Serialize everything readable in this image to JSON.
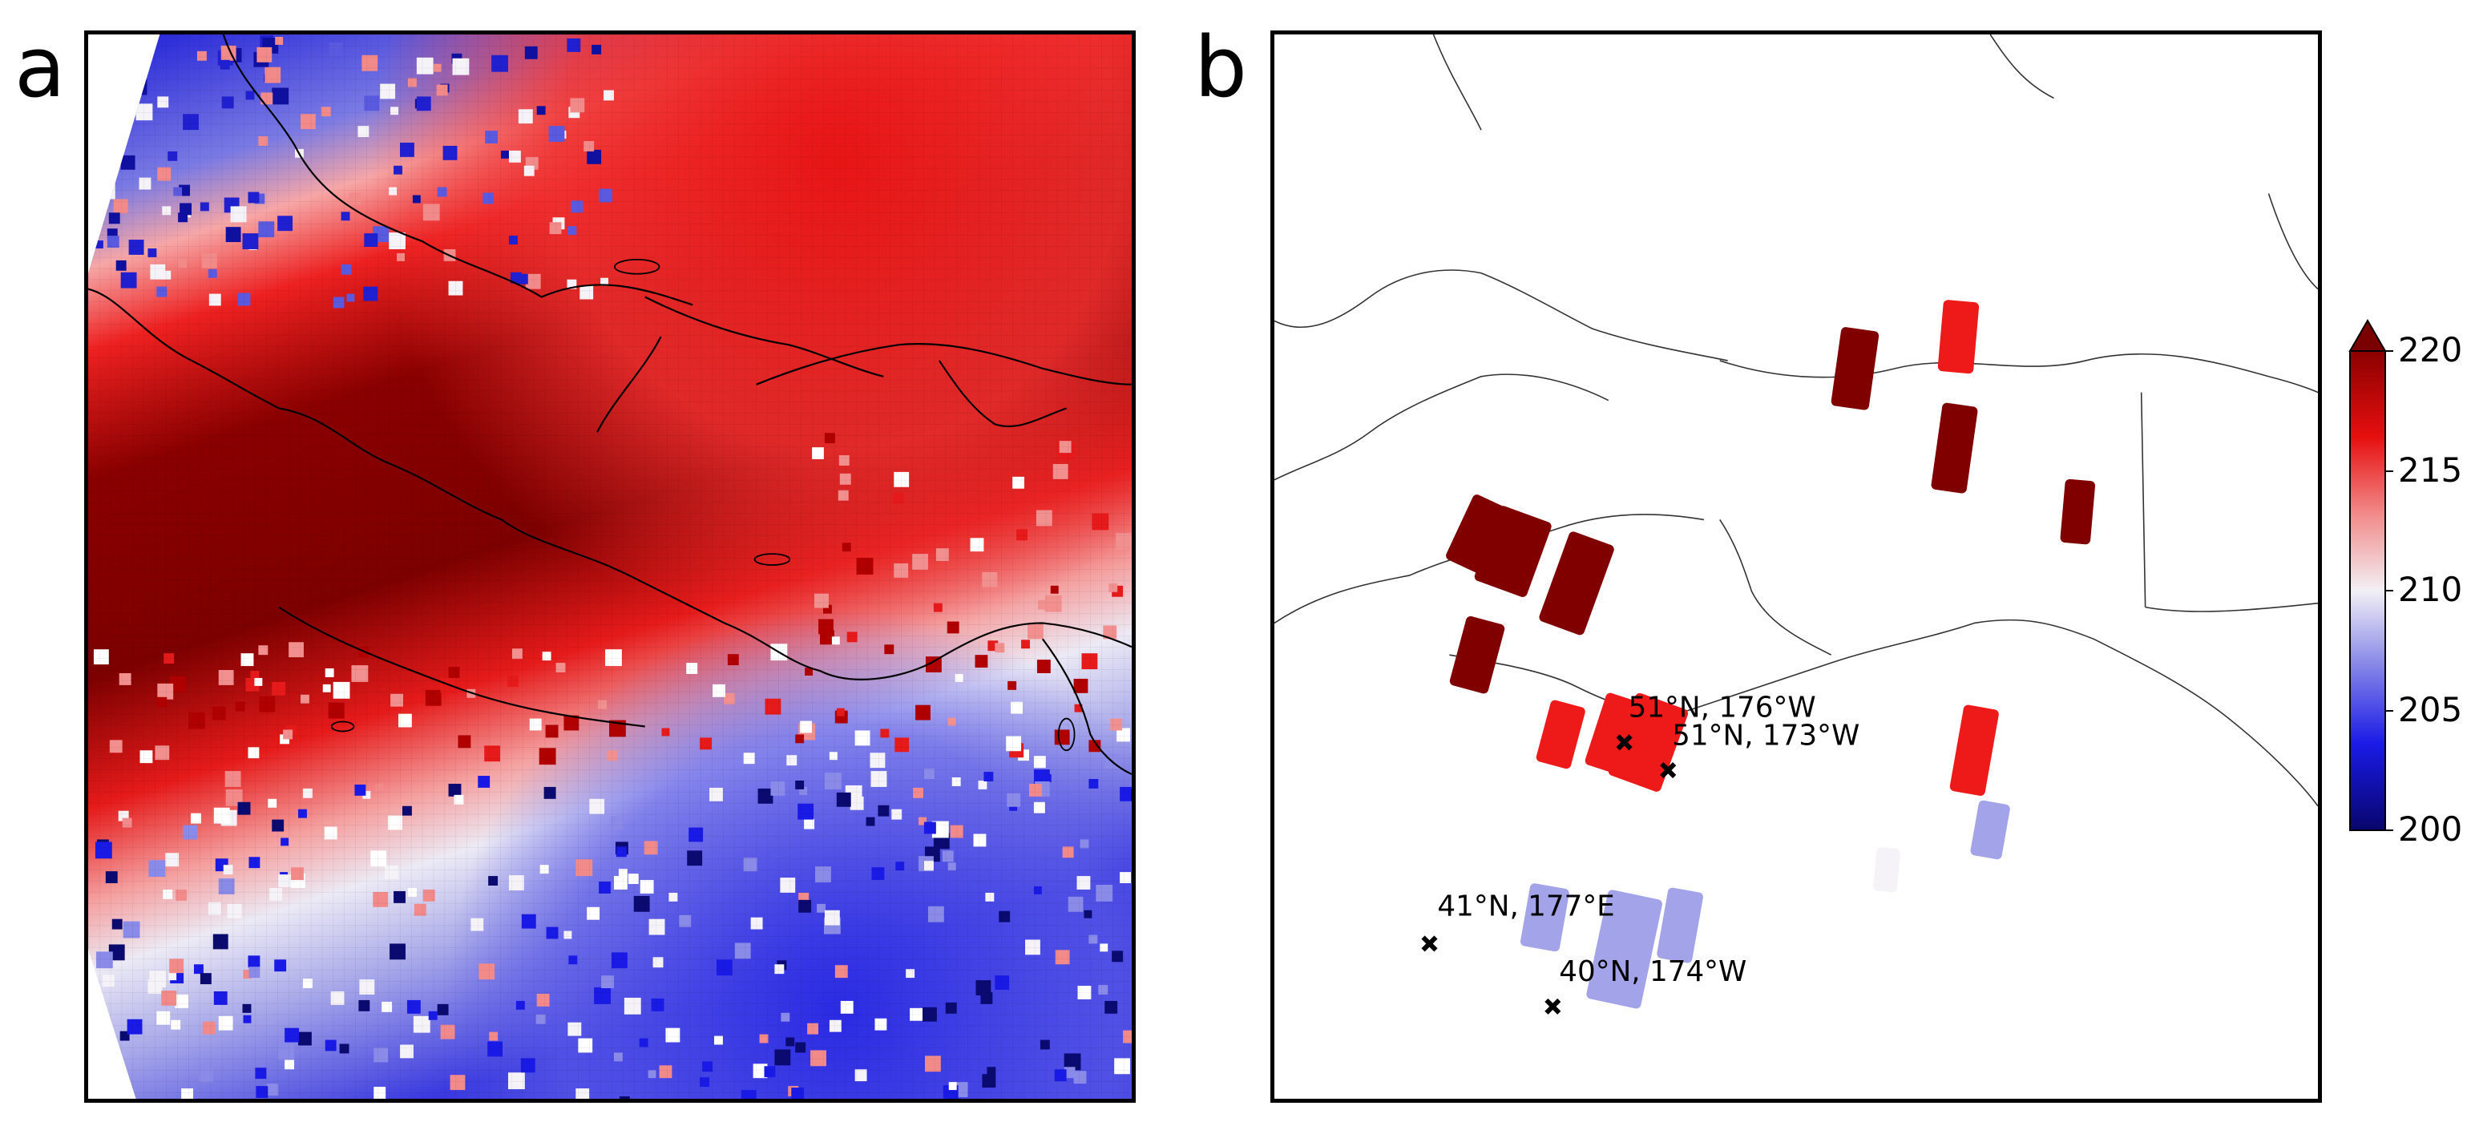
{
  "figure": {
    "panel_a_label": "a",
    "panel_b_label": "b"
  },
  "colorbar": {
    "min": 200,
    "max": 220,
    "extend": "max",
    "ticks": [
      "200",
      "205",
      "210",
      "215",
      "220"
    ],
    "colormap": [
      "#08066b",
      "#1a1ae6",
      "#8a8ae8",
      "#f2f0f5",
      "#f28a8a",
      "#e60f0f",
      "#8b0000"
    ]
  },
  "panel_b": {
    "markers": [
      {
        "label": "51°N, 176°W"
      },
      {
        "label": "51°N, 173°W"
      },
      {
        "label": "41°N, 177°E"
      },
      {
        "label": "40°N, 174°W"
      }
    ]
  },
  "colors": {
    "deep_red": "#800000",
    "red": "#ee1a1a",
    "light_red": "#f7a0a0",
    "white": "#f5f3f7",
    "light_blue": "#a3a3ea",
    "blue": "#2a2ae0",
    "dark_blue": "#0a0a70"
  }
}
